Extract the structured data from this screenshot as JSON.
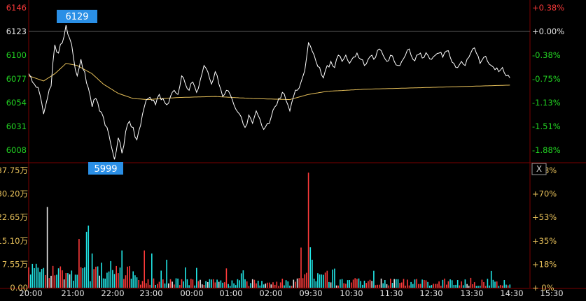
{
  "colors": {
    "background": "#000000",
    "frame": "#7a0000",
    "grid": "#5a0000",
    "price_line": "#ffffff",
    "avg_line": "#e8c15a",
    "up": "#ff3b3b",
    "down": "#21e6e6",
    "neutral": "#e6e6e6",
    "green_text": "#22d322",
    "volume_text": "#e8c15a",
    "callout_bg": "#2a8fe6",
    "callout_text": "#ffffff"
  },
  "chart_data": [
    {
      "type": "line",
      "panel": "price",
      "y_left_ticks": [
        "6146",
        "6123",
        "6100",
        "6077",
        "6054",
        "6031",
        "6008"
      ],
      "y_left_values": [
        6146,
        6123,
        6100,
        6077,
        6054,
        6031,
        6008
      ],
      "y_right_ticks": [
        "+0.38%",
        "+0.00%",
        "-0.38%",
        "-0.75%",
        "-1.13%",
        "-1.51%",
        "-1.88%"
      ],
      "ylim": [
        6008,
        6146
      ],
      "reference_price": 6123,
      "high_label": "6129",
      "low_label": "5999",
      "x_ticks": [
        "20:00",
        "21:00",
        "22:00",
        "23:00",
        "00:00",
        "01:00",
        "02:00",
        "09:30",
        "10:30",
        "11:30",
        "12:30",
        "13:30",
        "14:30",
        "15:30"
      ],
      "price_key": [
        [
          0,
          6082
        ],
        [
          3,
          6072
        ],
        [
          6,
          6062
        ],
        [
          8,
          6043
        ],
        [
          10,
          6058
        ],
        [
          12,
          6070
        ],
        [
          14,
          6110
        ],
        [
          16,
          6102
        ],
        [
          18,
          6112
        ],
        [
          20,
          6129
        ],
        [
          22,
          6116
        ],
        [
          24,
          6098
        ],
        [
          26,
          6080
        ],
        [
          28,
          6096
        ],
        [
          30,
          6084
        ],
        [
          32,
          6068
        ],
        [
          34,
          6050
        ],
        [
          36,
          6058
        ],
        [
          38,
          6046
        ],
        [
          40,
          6040
        ],
        [
          42,
          6030
        ],
        [
          44,
          6014
        ],
        [
          46,
          5999
        ],
        [
          48,
          6020
        ],
        [
          50,
          6005
        ],
        [
          52,
          6026
        ],
        [
          54,
          6036
        ],
        [
          56,
          6030
        ],
        [
          58,
          6018
        ],
        [
          60,
          6032
        ],
        [
          62,
          6050
        ],
        [
          64,
          6058
        ],
        [
          66,
          6056
        ],
        [
          68,
          6052
        ],
        [
          70,
          6062
        ],
        [
          72,
          6058
        ],
        [
          74,
          6052
        ],
        [
          76,
          6060
        ],
        [
          78,
          6066
        ],
        [
          80,
          6062
        ],
        [
          82,
          6080
        ],
        [
          84,
          6072
        ],
        [
          86,
          6066
        ],
        [
          88,
          6074
        ],
        [
          90,
          6064
        ],
        [
          92,
          6076
        ],
        [
          94,
          6090
        ],
        [
          96,
          6084
        ],
        [
          98,
          6072
        ],
        [
          100,
          6084
        ],
        [
          102,
          6072
        ],
        [
          104,
          6060
        ],
        [
          106,
          6066
        ],
        [
          108,
          6062
        ],
        [
          110,
          6052
        ],
        [
          112,
          6045
        ],
        [
          114,
          6040
        ],
        [
          116,
          6030
        ],
        [
          118,
          6042
        ],
        [
          120,
          6034
        ],
        [
          122,
          6046
        ],
        [
          124,
          6038
        ],
        [
          126,
          6028
        ],
        [
          128,
          6034
        ],
        [
          130,
          6040
        ],
        [
          132,
          6050
        ],
        [
          134,
          6058
        ],
        [
          136,
          6064
        ],
        [
          138,
          6056
        ],
        [
          140,
          6046
        ],
        [
          142,
          6060
        ],
        [
          144,
          6066
        ],
        [
          146,
          6074
        ],
        [
          148,
          6085
        ],
        [
          150,
          6112
        ],
        [
          152,
          6104
        ],
        [
          154,
          6094
        ],
        [
          156,
          6088
        ],
        [
          158,
          6078
        ],
        [
          160,
          6090
        ],
        [
          162,
          6094
        ],
        [
          164,
          6088
        ],
        [
          166,
          6100
        ],
        [
          168,
          6094
        ],
        [
          170,
          6100
        ],
        [
          172,
          6092
        ],
        [
          174,
          6098
        ],
        [
          176,
          6102
        ],
        [
          178,
          6096
        ],
        [
          180,
          6090
        ],
        [
          182,
          6096
        ],
        [
          184,
          6100
        ],
        [
          186,
          6098
        ],
        [
          188,
          6106
        ],
        [
          190,
          6100
        ],
        [
          192,
          6094
        ],
        [
          194,
          6100
        ],
        [
          196,
          6094
        ],
        [
          198,
          6090
        ],
        [
          200,
          6094
        ],
        [
          202,
          6100
        ],
        [
          204,
          6106
        ],
        [
          206,
          6096
        ],
        [
          208,
          6100
        ],
        [
          210,
          6102
        ],
        [
          212,
          6098
        ],
        [
          214,
          6100
        ],
        [
          216,
          6096
        ],
        [
          218,
          6100
        ],
        [
          220,
          6102
        ],
        [
          222,
          6098
        ],
        [
          224,
          6104
        ],
        [
          226,
          6098
        ],
        [
          228,
          6092
        ],
        [
          230,
          6088
        ],
        [
          232,
          6094
        ],
        [
          234,
          6090
        ],
        [
          236,
          6098
        ],
        [
          238,
          6106
        ],
        [
          240,
          6102
        ],
        [
          242,
          6092
        ],
        [
          244,
          6098
        ],
        [
          246,
          6094
        ],
        [
          248,
          6090
        ],
        [
          250,
          6086
        ],
        [
          252,
          6084
        ],
        [
          254,
          6088
        ],
        [
          256,
          6080
        ],
        [
          258,
          6078
        ]
      ],
      "avg_key": [
        [
          0,
          6080
        ],
        [
          8,
          6075
        ],
        [
          14,
          6082
        ],
        [
          20,
          6092
        ],
        [
          26,
          6090
        ],
        [
          34,
          6082
        ],
        [
          40,
          6072
        ],
        [
          48,
          6063
        ],
        [
          56,
          6058
        ],
        [
          64,
          6057
        ],
        [
          80,
          6059
        ],
        [
          100,
          6060
        ],
        [
          120,
          6058
        ],
        [
          140,
          6057
        ],
        [
          150,
          6062
        ],
        [
          160,
          6065
        ],
        [
          180,
          6067
        ],
        [
          200,
          6068
        ],
        [
          220,
          6069
        ],
        [
          240,
          6070
        ],
        [
          258,
          6071
        ]
      ],
      "n_samples": 259
    },
    {
      "type": "bar",
      "panel": "volume",
      "y_left_ticks": [
        "37.75万",
        "30.20万",
        "22.65万",
        "15.10万",
        "7.55万",
        "0.00"
      ],
      "y_left_values": [
        37.75,
        30.2,
        22.65,
        15.1,
        7.55,
        0
      ],
      "y_right_ticks": [
        "+88%",
        "+70%",
        "+53%",
        "+35%",
        "+18%",
        "+ 0%"
      ],
      "ylim": [
        0,
        37.75
      ],
      "unit": "万",
      "close_button_label": "X"
    }
  ]
}
